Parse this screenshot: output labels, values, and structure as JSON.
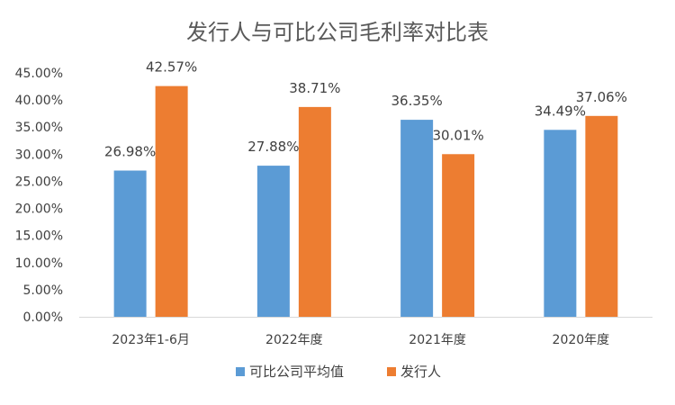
{
  "chart_data": {
    "type": "bar",
    "title": "发行人与可比公司毛利率对比表",
    "xlabel": "",
    "ylabel": "",
    "categories": [
      "2023年1-6月",
      "2022年度",
      "2021年度",
      "2020年度"
    ],
    "series": [
      {
        "name": "可比公司平均值",
        "color": "#5B9BD5",
        "values": [
          26.98,
          27.88,
          36.35,
          34.49
        ],
        "labels": [
          "26.98%",
          "27.88%",
          "36.35%",
          "34.49%"
        ]
      },
      {
        "name": "发行人",
        "color": "#ED7D31",
        "values": [
          42.57,
          38.71,
          30.01,
          37.06
        ],
        "labels": [
          "42.57%",
          "38.71%",
          "30.01%",
          "37.06%"
        ]
      }
    ],
    "ylim": [
      0,
      45
    ],
    "yticks": [
      0,
      5,
      10,
      15,
      20,
      25,
      30,
      35,
      40,
      45
    ],
    "ytick_labels": [
      "0.00%",
      "5.00%",
      "10.00%",
      "15.00%",
      "20.00%",
      "25.00%",
      "30.00%",
      "35.00%",
      "40.00%",
      "45.00%"
    ],
    "grid": false,
    "legend_position": "bottom"
  }
}
